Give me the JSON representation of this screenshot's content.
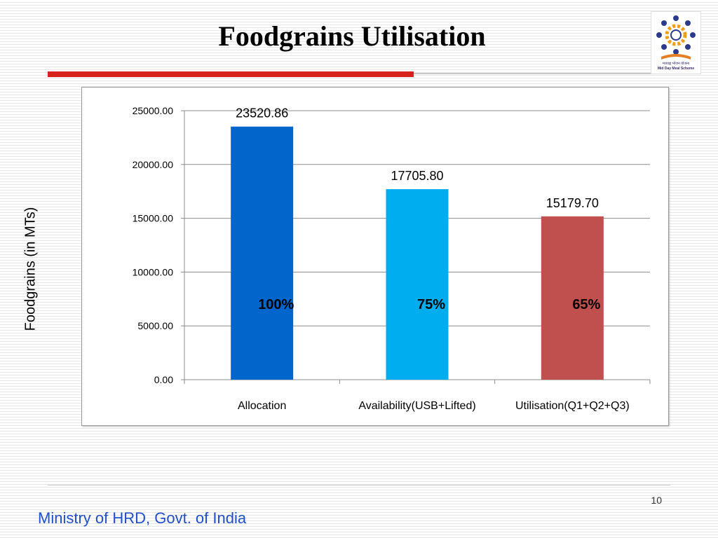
{
  "slide": {
    "title": "Foodgrains Utilisation",
    "page_number": "10",
    "footer": "Ministry of HRD, Govt. of India"
  },
  "logo": {
    "icon": "mid-day-meal-logo",
    "caption_hindi": "मध्याह्न भोजन योजना",
    "caption_english": "Mid Day Meal Scheme"
  },
  "colors": {
    "title_bar": "#d9211e",
    "footer_text": "#1f4fc9"
  },
  "chart_data": {
    "type": "bar",
    "title": "",
    "xlabel": "",
    "ylabel": "Foodgrains (in MTs)",
    "categories": [
      "Allocation",
      "Availability(USB+Lifted)",
      "Utilisation(Q1+Q2+Q3)"
    ],
    "values": [
      23520.86,
      17705.8,
      15179.7
    ],
    "value_labels": [
      "23520.86",
      "17705.80",
      "15179.70"
    ],
    "percent_labels": [
      "100%",
      "75%",
      "65%"
    ],
    "bar_colors": [
      "#0066cc",
      "#00aeef",
      "#c0504d"
    ],
    "ylim": [
      0,
      25000
    ],
    "yticks": [
      0,
      5000,
      10000,
      15000,
      20000,
      25000
    ],
    "ytick_labels": [
      "0.00",
      "5000.00",
      "10000.00",
      "15000.00",
      "20000.00",
      "25000.00"
    ],
    "grid": true,
    "legend": "none"
  }
}
